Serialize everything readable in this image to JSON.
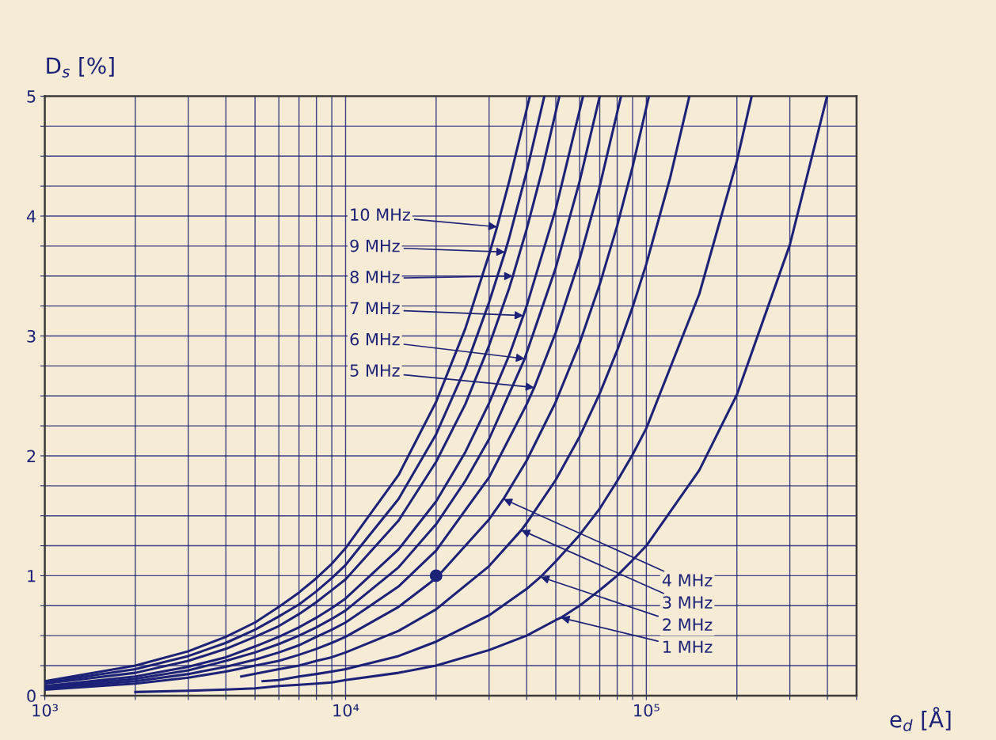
{
  "chart_data": {
    "type": "line",
    "xlabel": "e$_{d}$ [Å]",
    "ylabel": "D$_{s}$ [%]",
    "log": "x",
    "grid": true,
    "marker": "none",
    "line_style": "solid",
    "xlim": [
      1000,
      500000
    ],
    "xticks": [
      {
        "value": 1000,
        "label": "10³"
      },
      {
        "value": 2000,
        "label": null
      },
      {
        "value": 3000,
        "label": null
      },
      {
        "value": 4000,
        "label": null
      },
      {
        "value": 5000,
        "label": null
      },
      {
        "value": 6000,
        "label": null
      },
      {
        "value": 7000,
        "label": null
      },
      {
        "value": 8000,
        "label": null
      },
      {
        "value": 9000,
        "label": null
      },
      {
        "value": 10000,
        "label": "10⁴"
      },
      {
        "value": 20000,
        "label": null
      },
      {
        "value": 30000,
        "label": null
      },
      {
        "value": 40000,
        "label": null
      },
      {
        "value": 50000,
        "label": null
      },
      {
        "value": 60000,
        "label": null
      },
      {
        "value": 70000,
        "label": null
      },
      {
        "value": 80000,
        "label": null
      },
      {
        "value": 90000,
        "label": null
      },
      {
        "value": 100000,
        "label": "10⁵"
      },
      {
        "value": 200000,
        "label": null
      },
      {
        "value": 300000,
        "label": null
      },
      {
        "value": 400000,
        "label": null
      },
      {
        "value": 500000,
        "label": null
      }
    ],
    "ylim": [
      0,
      5
    ],
    "yticks": [
      0,
      {
        "value": 0.25,
        "label": null
      },
      {
        "value": 0.5,
        "label": null
      },
      {
        "value": 0.75,
        "label": null
      },
      1,
      {
        "value": 1.25,
        "label": null
      },
      {
        "value": 1.5,
        "label": null
      },
      {
        "value": 1.75,
        "label": null
      },
      2,
      {
        "value": 2.25,
        "label": null
      },
      {
        "value": 2.5,
        "label": null
      },
      {
        "value": 2.75,
        "label": null
      },
      3,
      {
        "value": 3.25,
        "label": null
      },
      {
        "value": 3.5,
        "label": null
      },
      {
        "value": 3.75,
        "label": null
      },
      4,
      {
        "value": 4.25,
        "label": null
      },
      {
        "value": 4.5,
        "label": null
      },
      {
        "value": 4.75,
        "label": null
      },
      5
    ],
    "series": [
      {
        "color": "#1c2278",
        "x": [
          1000,
          2000,
          3000,
          4000,
          5000,
          6000,
          7000,
          8000,
          9000,
          10000,
          15000,
          20000,
          25000,
          30000,
          31900,
          35000,
          41000
        ],
        "values": [
          0.12,
          0.25,
          0.37,
          0.49,
          0.61,
          0.74,
          0.86,
          0.98,
          1.1,
          1.23,
          1.84,
          2.45,
          3.06,
          3.68,
          3.91,
          4.29,
          5.0
        ]
      },
      {
        "color": "#1c2278",
        "x": [
          1000,
          2000,
          3000,
          4000,
          5000,
          6000,
          7000,
          8000,
          9000,
          10000,
          15000,
          20000,
          25000,
          30000,
          33900,
          35000,
          40000,
          45800
        ],
        "values": [
          0.11,
          0.22,
          0.33,
          0.44,
          0.55,
          0.66,
          0.76,
          0.87,
          0.98,
          1.09,
          1.64,
          2.18,
          2.73,
          3.28,
          3.7,
          3.82,
          4.37,
          5.0
        ]
      },
      {
        "color": "#1c2278",
        "x": [
          1000,
          2000,
          3000,
          4000,
          5000,
          6000,
          7000,
          8000,
          9000,
          10000,
          15000,
          20000,
          25000,
          30000,
          35000,
          36000,
          40000,
          45000,
          51400
        ],
        "values": [
          0.1,
          0.19,
          0.29,
          0.39,
          0.49,
          0.58,
          0.68,
          0.78,
          0.88,
          0.97,
          1.46,
          1.95,
          2.43,
          2.92,
          3.4,
          3.5,
          3.89,
          4.38,
          5.0
        ]
      },
      {
        "color": "#1c2278",
        "x": [
          1000,
          2000,
          3000,
          4000,
          5000,
          6000,
          7000,
          8000,
          9000,
          10000,
          15000,
          20000,
          25000,
          30000,
          35000,
          39000,
          40000,
          50000,
          61600
        ],
        "values": [
          0.08,
          0.16,
          0.24,
          0.32,
          0.41,
          0.49,
          0.57,
          0.65,
          0.73,
          0.81,
          1.22,
          1.62,
          2.03,
          2.44,
          2.84,
          3.17,
          3.25,
          4.06,
          5.0
        ]
      },
      {
        "color": "#1c2278",
        "x": [
          1000,
          2000,
          3000,
          4000,
          5000,
          6000,
          7000,
          8000,
          9000,
          10000,
          15000,
          20000,
          25000,
          30000,
          39400,
          40000,
          50000,
          60000,
          70000
        ],
        "values": [
          0.07,
          0.14,
          0.21,
          0.29,
          0.36,
          0.43,
          0.5,
          0.57,
          0.64,
          0.71,
          1.07,
          1.43,
          1.79,
          2.14,
          2.81,
          2.86,
          3.57,
          4.29,
          5.0
        ]
      },
      {
        "color": "#1c2278",
        "x": [
          1000,
          2000,
          3000,
          4000,
          5000,
          6000,
          7000,
          8000,
          9000,
          10000,
          15000,
          20000,
          30000,
          40000,
          42400,
          50000,
          60000,
          70000,
          82400
        ],
        "values": [
          0.06,
          0.12,
          0.18,
          0.24,
          0.3,
          0.36,
          0.42,
          0.49,
          0.55,
          0.61,
          0.91,
          1.21,
          1.82,
          2.43,
          2.57,
          3.03,
          3.64,
          4.25,
          5.0
        ]
      },
      {
        "color": "#1c2278",
        "x": [
          1000,
          2000,
          3000,
          4000,
          5000,
          6000,
          7000,
          8000,
          9000,
          10000,
          15000,
          20000,
          30000,
          33500,
          40000,
          50000,
          60000,
          70000,
          80000,
          90000,
          102000
        ],
        "values": [
          0.05,
          0.1,
          0.15,
          0.2,
          0.25,
          0.29,
          0.34,
          0.39,
          0.44,
          0.49,
          0.74,
          0.98,
          1.47,
          1.64,
          1.96,
          2.45,
          2.94,
          3.43,
          3.92,
          4.41,
          5.0
        ]
      },
      {
        "color": "#1c2278",
        "x": [
          4500,
          6000,
          7000,
          8000,
          9000,
          10000,
          15000,
          20000,
          30000,
          38400,
          40000,
          50000,
          60000,
          70000,
          80000,
          90000,
          100000,
          120000,
          139000
        ],
        "values": [
          0.16,
          0.22,
          0.25,
          0.29,
          0.32,
          0.36,
          0.54,
          0.72,
          1.08,
          1.38,
          1.44,
          1.8,
          2.16,
          2.52,
          2.88,
          3.24,
          3.6,
          4.32,
          5.0
        ]
      },
      {
        "color": "#1c2278",
        "x": [
          5300,
          6000,
          7000,
          8000,
          9000,
          10000,
          15000,
          20000,
          30000,
          40000,
          44500,
          50000,
          60000,
          70000,
          80000,
          90000,
          100000,
          150000,
          200000,
          224000
        ],
        "values": [
          0.12,
          0.13,
          0.16,
          0.18,
          0.2,
          0.22,
          0.33,
          0.45,
          0.67,
          0.89,
          0.99,
          1.12,
          1.34,
          1.56,
          1.79,
          2.01,
          2.23,
          3.35,
          4.46,
          5.0
        ]
      },
      {
        "color": "#1c2278",
        "x": [
          2000,
          3000,
          4000,
          5000,
          6000,
          7000,
          8000,
          9000,
          10000,
          15000,
          20000,
          30000,
          40000,
          50000,
          52000,
          60000,
          70000,
          80000,
          90000,
          100000,
          150000,
          200000,
          300000,
          399000
        ],
        "values": [
          0.03,
          0.04,
          0.05,
          0.06,
          0.08,
          0.09,
          0.1,
          0.11,
          0.13,
          0.19,
          0.25,
          0.38,
          0.5,
          0.63,
          0.65,
          0.75,
          0.88,
          1.0,
          1.13,
          1.25,
          1.88,
          2.51,
          3.76,
          5.0
        ]
      },
      {
        "type": "scatter",
        "marker": "circle",
        "color": "#1c2278",
        "x": [
          20000
        ],
        "values": [
          1.0
        ]
      }
    ],
    "annotations": [
      {
        "text": "10 MHz",
        "x": 31900,
        "y": 3.91
      },
      {
        "text": "9 MHz",
        "x": 33900,
        "y": 3.7
      },
      {
        "text": "8 MHz",
        "x": 36000,
        "y": 3.5
      },
      {
        "text": "7 MHz",
        "x": 39000,
        "y": 3.17
      },
      {
        "text": "6 MHz",
        "x": 39400,
        "y": 2.81
      },
      {
        "text": "5 MHz",
        "x": 42400,
        "y": 2.57
      },
      {
        "text": "4 MHz",
        "x": 33500,
        "y": 1.64
      },
      {
        "text": "3 MHz",
        "x": 38400,
        "y": 1.38
      },
      {
        "text": "2 MHz",
        "x": 44500,
        "y": 0.99
      },
      {
        "text": "1 MHz",
        "x": 52000,
        "y": 0.65
      }
    ]
  }
}
